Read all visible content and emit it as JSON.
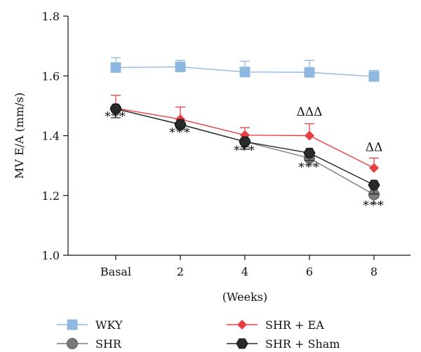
{
  "chart_data": {
    "type": "line",
    "ylabel": "MV E/A (mm/s)",
    "xlabel": "(Weeks)",
    "categories": [
      "Basal",
      "2",
      "4",
      "6",
      "8"
    ],
    "ylim": [
      1.0,
      1.8
    ],
    "yticks": [
      1.0,
      1.2,
      1.4,
      1.6,
      1.8
    ],
    "ytick_labels": [
      "1.0",
      "1.2",
      "1.4",
      "1.6",
      "1.8"
    ],
    "legend_position": "bottom",
    "series": [
      {
        "name": "WKY",
        "color": "#8fb8e0",
        "marker": "square",
        "errbar_dir": "up",
        "values": [
          1.628,
          1.63,
          1.613,
          1.612,
          1.598
        ],
        "errors": [
          0.033,
          0.022,
          0.036,
          0.04,
          0.02
        ]
      },
      {
        "name": "SHR",
        "color": "#7a7a7a",
        "marker": "circle",
        "errbar_dir": "down",
        "values": [
          1.49,
          1.437,
          1.38,
          1.325,
          1.203
        ],
        "errors": [
          0.02,
          0.018,
          0.018,
          0.022,
          0.03
        ]
      },
      {
        "name": "SHR + EA",
        "color": "#e84040",
        "marker": "diamond",
        "errbar_dir": "up",
        "values": [
          1.492,
          1.455,
          1.402,
          1.4,
          1.292
        ],
        "errors": [
          0.043,
          0.041,
          0.025,
          0.04,
          0.033
        ]
      },
      {
        "name": "SHR + Sham",
        "color": "#2a2a2a",
        "marker": "hexagon",
        "errbar_dir": "down",
        "values": [
          1.49,
          1.438,
          1.38,
          1.342,
          1.235
        ],
        "errors": [
          0.03,
          0.012,
          0.025,
          0.025,
          0.03
        ]
      }
    ],
    "annotations": [
      {
        "text": "***",
        "category": 0,
        "y": 1.452
      },
      {
        "text": "***",
        "category": 1,
        "y": 1.398
      },
      {
        "text": "***",
        "category": 2,
        "y": 1.338
      },
      {
        "text": "***",
        "category": 3,
        "y": 1.282
      },
      {
        "text": "***",
        "category": 4,
        "y": 1.154
      },
      {
        "text": "ΔΔΔ",
        "category": 3,
        "y": 1.467
      },
      {
        "text": "ΔΔ",
        "category": 4,
        "y": 1.348
      }
    ]
  }
}
